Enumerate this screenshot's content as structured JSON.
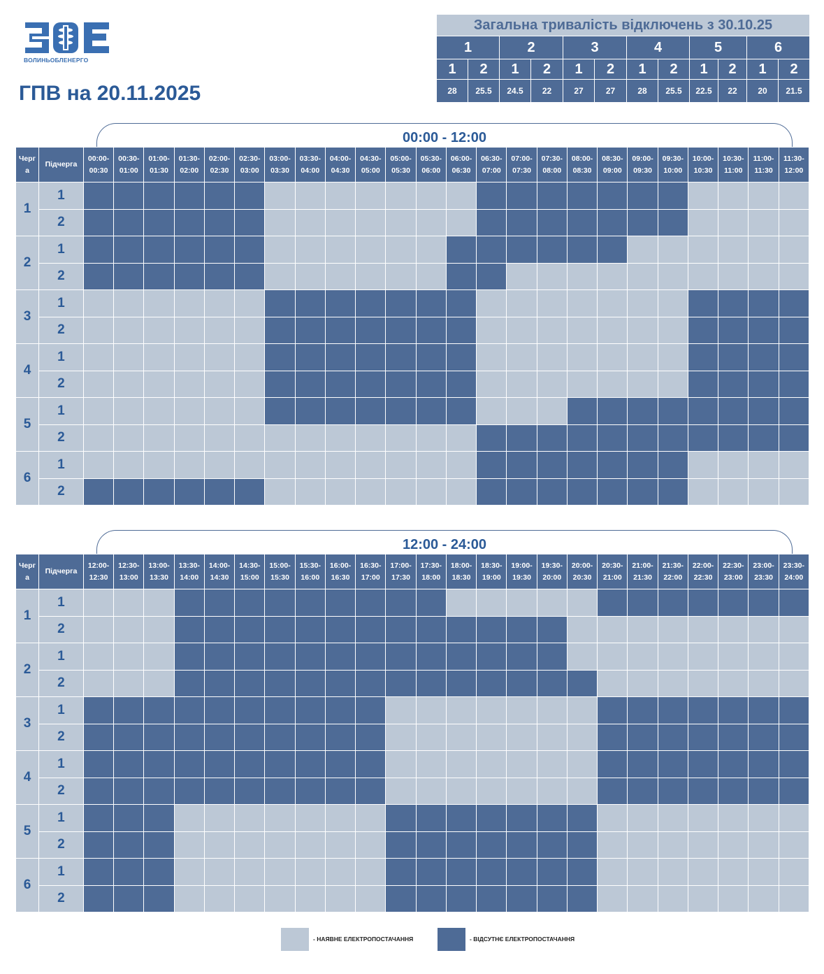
{
  "logo": {
    "icon": "zoe-logo-icon",
    "caption": "ВОЛИНЬОБЛЕНЕРГО"
  },
  "page_title": "ГПВ на 20.11.2025",
  "summary": {
    "title": "Загальна тривалість відключень з 30.10.25",
    "queues": [
      "1",
      "2",
      "3",
      "4",
      "5",
      "6"
    ],
    "subqueues": [
      "1",
      "2",
      "1",
      "2",
      "1",
      "2",
      "1",
      "2",
      "1",
      "2",
      "1",
      "2"
    ],
    "values": [
      "28",
      "25.5",
      "24.5",
      "22",
      "27",
      "27",
      "28",
      "25.5",
      "22.5",
      "22",
      "20",
      "21.5"
    ]
  },
  "header": {
    "queue": "Черг\nа",
    "subqueue": "Підчерга"
  },
  "sections": [
    {
      "range": "00:00 - 12:00",
      "slots": [
        "00:00-\n00:30",
        "00:30-\n01:00",
        "01:00-\n01:30",
        "01:30-\n02:00",
        "02:00-\n02:30",
        "02:30-\n03:00",
        "03:00-\n03:30",
        "03:30-\n04:00",
        "04:00-\n04:30",
        "04:30-\n05:00",
        "05:00-\n05:30",
        "05:30-\n06:00",
        "06:00-\n06:30",
        "06:30-\n07:00",
        "07:00-\n07:30",
        "07:30-\n08:00",
        "08:00-\n08:30",
        "08:30-\n09:00",
        "09:00-\n09:30",
        "09:30-\n10:00",
        "10:00-\n10:30",
        "10:30-\n11:00",
        "11:00-\n11:30",
        "11:30-\n12:00"
      ],
      "rows": [
        {
          "queue": "1",
          "subqueue": "1",
          "cells": [
            1,
            1,
            1,
            1,
            1,
            1,
            0,
            0,
            0,
            0,
            0,
            0,
            0,
            1,
            1,
            1,
            1,
            1,
            1,
            1,
            0,
            0,
            0,
            0
          ]
        },
        {
          "queue": "1",
          "subqueue": "2",
          "cells": [
            1,
            1,
            1,
            1,
            1,
            1,
            0,
            0,
            0,
            0,
            0,
            0,
            0,
            1,
            1,
            1,
            1,
            1,
            1,
            1,
            0,
            0,
            0,
            0
          ]
        },
        {
          "queue": "2",
          "subqueue": "1",
          "cells": [
            1,
            1,
            1,
            1,
            1,
            1,
            0,
            0,
            0,
            0,
            0,
            0,
            1,
            1,
            1,
            1,
            1,
            1,
            0,
            0,
            0,
            0,
            0,
            0
          ]
        },
        {
          "queue": "2",
          "subqueue": "2",
          "cells": [
            1,
            1,
            1,
            1,
            1,
            1,
            0,
            0,
            0,
            0,
            0,
            0,
            1,
            1,
            0,
            0,
            0,
            0,
            0,
            0,
            0,
            0,
            0,
            0
          ]
        },
        {
          "queue": "3",
          "subqueue": "1",
          "cells": [
            0,
            0,
            0,
            0,
            0,
            0,
            1,
            1,
            1,
            1,
            1,
            1,
            1,
            0,
            0,
            0,
            0,
            0,
            0,
            0,
            1,
            1,
            1,
            1
          ]
        },
        {
          "queue": "3",
          "subqueue": "2",
          "cells": [
            0,
            0,
            0,
            0,
            0,
            0,
            1,
            1,
            1,
            1,
            1,
            1,
            1,
            0,
            0,
            0,
            0,
            0,
            0,
            0,
            1,
            1,
            1,
            1
          ]
        },
        {
          "queue": "4",
          "subqueue": "1",
          "cells": [
            0,
            0,
            0,
            0,
            0,
            0,
            1,
            1,
            1,
            1,
            1,
            1,
            1,
            0,
            0,
            0,
            0,
            0,
            0,
            0,
            1,
            1,
            1,
            1
          ]
        },
        {
          "queue": "4",
          "subqueue": "2",
          "cells": [
            0,
            0,
            0,
            0,
            0,
            0,
            1,
            1,
            1,
            1,
            1,
            1,
            1,
            0,
            0,
            0,
            0,
            0,
            0,
            0,
            1,
            1,
            1,
            1
          ]
        },
        {
          "queue": "5",
          "subqueue": "1",
          "cells": [
            0,
            0,
            0,
            0,
            0,
            0,
            1,
            1,
            1,
            1,
            1,
            1,
            1,
            0,
            0,
            0,
            1,
            1,
            1,
            1,
            1,
            1,
            1,
            1
          ]
        },
        {
          "queue": "5",
          "subqueue": "2",
          "cells": [
            0,
            0,
            0,
            0,
            0,
            0,
            0,
            0,
            0,
            0,
            0,
            0,
            0,
            1,
            1,
            1,
            1,
            1,
            1,
            1,
            1,
            1,
            1,
            1
          ]
        },
        {
          "queue": "6",
          "subqueue": "1",
          "cells": [
            0,
            0,
            0,
            0,
            0,
            0,
            0,
            0,
            0,
            0,
            0,
            0,
            0,
            1,
            1,
            1,
            1,
            1,
            1,
            1,
            0,
            0,
            0,
            0
          ]
        },
        {
          "queue": "6",
          "subqueue": "2",
          "cells": [
            1,
            1,
            1,
            1,
            1,
            1,
            0,
            0,
            0,
            0,
            0,
            0,
            0,
            1,
            1,
            1,
            1,
            1,
            1,
            1,
            0,
            0,
            0,
            0
          ]
        }
      ]
    },
    {
      "range": "12:00 - 24:00",
      "slots": [
        "12:00-\n12:30",
        "12:30-\n13:00",
        "13:00-\n13:30",
        "13:30-\n14:00",
        "14:00-\n14:30",
        "14:30-\n15:00",
        "15:00-\n15:30",
        "15:30-\n16:00",
        "16:00-\n16:30",
        "16:30-\n17:00",
        "17:00-\n17:30",
        "17:30-\n18:00",
        "18:00-\n18:30",
        "18:30-\n19:00",
        "19:00-\n19:30",
        "19:30-\n20:00",
        "20:00-\n20:30",
        "20:30-\n21:00",
        "21:00-\n21:30",
        "21:30-\n22:00",
        "22:00-\n22:30",
        "22:30-\n23:00",
        "23:00-\n23:30",
        "23:30-\n24:00"
      ],
      "rows": [
        {
          "queue": "1",
          "subqueue": "1",
          "cells": [
            0,
            0,
            0,
            1,
            1,
            1,
            1,
            1,
            1,
            1,
            1,
            1,
            0,
            0,
            0,
            0,
            0,
            1,
            1,
            1,
            1,
            1,
            1,
            1
          ]
        },
        {
          "queue": "1",
          "subqueue": "2",
          "cells": [
            0,
            0,
            0,
            1,
            1,
            1,
            1,
            1,
            1,
            1,
            1,
            1,
            1,
            1,
            1,
            1,
            0,
            0,
            0,
            0,
            0,
            0,
            0,
            0
          ]
        },
        {
          "queue": "2",
          "subqueue": "1",
          "cells": [
            0,
            0,
            0,
            1,
            1,
            1,
            1,
            1,
            1,
            1,
            1,
            1,
            1,
            1,
            1,
            1,
            0,
            0,
            0,
            0,
            0,
            0,
            0,
            0
          ]
        },
        {
          "queue": "2",
          "subqueue": "2",
          "cells": [
            0,
            0,
            0,
            1,
            1,
            1,
            1,
            1,
            1,
            1,
            1,
            1,
            1,
            1,
            1,
            1,
            1,
            0,
            0,
            0,
            0,
            0,
            0,
            0
          ]
        },
        {
          "queue": "3",
          "subqueue": "1",
          "cells": [
            1,
            1,
            1,
            1,
            1,
            1,
            1,
            1,
            1,
            1,
            0,
            0,
            0,
            0,
            0,
            0,
            0,
            1,
            1,
            1,
            1,
            1,
            1,
            1
          ]
        },
        {
          "queue": "3",
          "subqueue": "2",
          "cells": [
            1,
            1,
            1,
            1,
            1,
            1,
            1,
            1,
            1,
            1,
            0,
            0,
            0,
            0,
            0,
            0,
            0,
            1,
            1,
            1,
            1,
            1,
            1,
            1
          ]
        },
        {
          "queue": "4",
          "subqueue": "1",
          "cells": [
            1,
            1,
            1,
            1,
            1,
            1,
            1,
            1,
            1,
            1,
            0,
            0,
            0,
            0,
            0,
            0,
            0,
            1,
            1,
            1,
            1,
            1,
            1,
            1
          ]
        },
        {
          "queue": "4",
          "subqueue": "2",
          "cells": [
            1,
            1,
            1,
            1,
            1,
            1,
            1,
            1,
            1,
            1,
            0,
            0,
            0,
            0,
            0,
            0,
            0,
            1,
            1,
            1,
            1,
            1,
            1,
            1
          ]
        },
        {
          "queue": "5",
          "subqueue": "1",
          "cells": [
            1,
            1,
            1,
            0,
            0,
            0,
            0,
            0,
            0,
            0,
            1,
            1,
            1,
            1,
            1,
            1,
            1,
            0,
            0,
            0,
            0,
            0,
            0,
            0
          ]
        },
        {
          "queue": "5",
          "subqueue": "2",
          "cells": [
            1,
            1,
            1,
            0,
            0,
            0,
            0,
            0,
            0,
            0,
            1,
            1,
            1,
            1,
            1,
            1,
            1,
            0,
            0,
            0,
            0,
            0,
            0,
            0
          ]
        },
        {
          "queue": "6",
          "subqueue": "1",
          "cells": [
            1,
            1,
            1,
            0,
            0,
            0,
            0,
            0,
            0,
            0,
            1,
            1,
            1,
            1,
            1,
            1,
            1,
            0,
            0,
            0,
            0,
            0,
            0,
            0
          ]
        },
        {
          "queue": "6",
          "subqueue": "2",
          "cells": [
            1,
            1,
            1,
            0,
            0,
            0,
            0,
            0,
            0,
            0,
            1,
            1,
            1,
            1,
            1,
            1,
            1,
            0,
            0,
            0,
            0,
            0,
            0,
            0
          ]
        }
      ]
    }
  ],
  "legend": {
    "on_label": "- НАЯВНЕ ЕЛЕКТРОПОСТАЧАННЯ",
    "off_label": "- ВІДСУТНЄ ЕЛЕКТРОПОСТАЧАННЯ"
  },
  "colors": {
    "power_on": "#bcc8d6",
    "power_off": "#4e6b96",
    "accent": "#2b5a97"
  }
}
